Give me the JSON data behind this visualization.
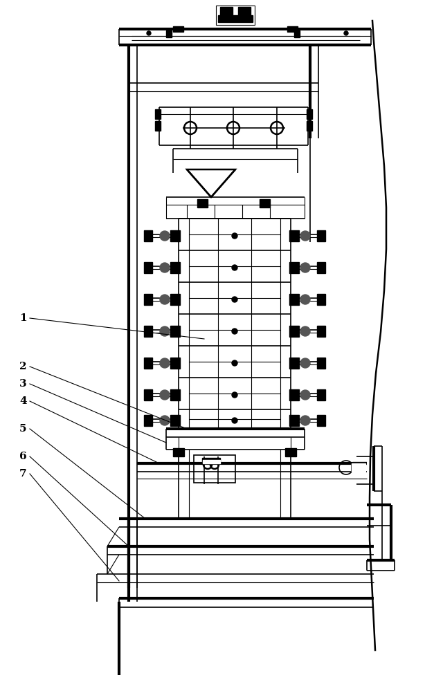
{
  "bg_color": "#ffffff",
  "line_color": "#000000",
  "lw_main": 1.8,
  "lw_thin": 0.8,
  "lw_thick": 3.0,
  "lw_med": 1.2,
  "label_fontsize": 11
}
